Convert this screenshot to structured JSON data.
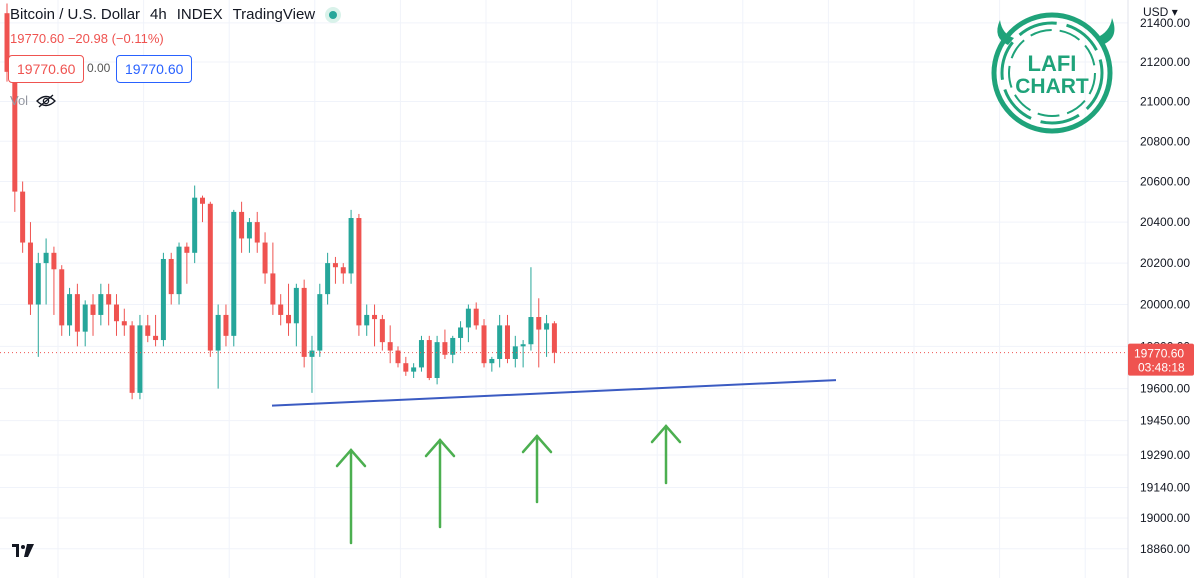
{
  "header": {
    "symbol": "Bitcoin / U.S. Dollar",
    "interval": "4h",
    "exchange": "INDEX",
    "source": "TradingView"
  },
  "ohlc_line": "19770.60 −20.98 (−0.11%)",
  "price_boxes": {
    "sell": "19770.60",
    "spread": "0.00",
    "buy": "19770.60"
  },
  "volume_label": "Vol",
  "currency": "USD",
  "current_price": {
    "price": "19770.60",
    "countdown": "03:48:18"
  },
  "logo": {
    "line1": "LAFI",
    "line2": "CHART"
  },
  "colors": {
    "up": "#26a69a",
    "down": "#ef5350",
    "trendline": "#3b5bc2",
    "arrows": "#4caf50",
    "logo": "#1fa37a"
  },
  "chart_data": {
    "type": "candlestick",
    "title": "Bitcoin / U.S. Dollar 4h",
    "yaxis_scale": "log",
    "ylim": [
      18790,
      21470
    ],
    "y_ticks": [
      "21400.00",
      "21200.00",
      "21000.00",
      "20800.00",
      "20600.00",
      "20400.00",
      "20200.00",
      "20000.00",
      "19800.00",
      "19600.00",
      "19450.00",
      "19290.00",
      "19140.00",
      "19000.00",
      "18860.00"
    ],
    "grid": true,
    "candles": [
      [
        21450,
        21500,
        21100,
        21150
      ],
      [
        21150,
        21200,
        20450,
        20550
      ],
      [
        20550,
        20600,
        20250,
        20300
      ],
      [
        20300,
        20400,
        19950,
        20000
      ],
      [
        20000,
        20250,
        19750,
        20200
      ],
      [
        20200,
        20320,
        20000,
        20250
      ],
      [
        20250,
        20280,
        19950,
        20170
      ],
      [
        20170,
        20190,
        19850,
        19900
      ],
      [
        19900,
        20080,
        19850,
        20050
      ],
      [
        20050,
        20100,
        19800,
        19870
      ],
      [
        19870,
        20020,
        19800,
        20000
      ],
      [
        20000,
        20050,
        19850,
        19950
      ],
      [
        19950,
        20100,
        19900,
        20050
      ],
      [
        20050,
        20100,
        19900,
        20000
      ],
      [
        20000,
        20050,
        19850,
        19920
      ],
      [
        19920,
        19980,
        19850,
        19900
      ],
      [
        19900,
        19920,
        19550,
        19580
      ],
      [
        19580,
        19950,
        19550,
        19900
      ],
      [
        19900,
        19950,
        19820,
        19850
      ],
      [
        19850,
        19950,
        19800,
        19830
      ],
      [
        19830,
        20250,
        19800,
        20220
      ],
      [
        20220,
        20250,
        20000,
        20050
      ],
      [
        20050,
        20300,
        20000,
        20280
      ],
      [
        20280,
        20300,
        20100,
        20250
      ],
      [
        20250,
        20580,
        20200,
        20520
      ],
      [
        20520,
        20530,
        20400,
        20490
      ],
      [
        20490,
        20500,
        19750,
        19780
      ],
      [
        19780,
        20000,
        19600,
        19950
      ],
      [
        19950,
        20000,
        19800,
        19850
      ],
      [
        19850,
        20460,
        19800,
        20450
      ],
      [
        20450,
        20500,
        20250,
        20320
      ],
      [
        20320,
        20420,
        20250,
        20400
      ],
      [
        20400,
        20450,
        20250,
        20300
      ],
      [
        20300,
        20350,
        20100,
        20150
      ],
      [
        20150,
        20300,
        19950,
        20000
      ],
      [
        20000,
        20050,
        19900,
        19950
      ],
      [
        19950,
        20100,
        19850,
        19910
      ],
      [
        19910,
        20100,
        19800,
        20080
      ],
      [
        20080,
        20120,
        19700,
        19750
      ],
      [
        19750,
        19850,
        19580,
        19780
      ],
      [
        19780,
        20100,
        19750,
        20050
      ],
      [
        20050,
        20250,
        20000,
        20200
      ],
      [
        20200,
        20230,
        20100,
        20180
      ],
      [
        20180,
        20200,
        20100,
        20150
      ],
      [
        20150,
        20460,
        20100,
        20420
      ],
      [
        20420,
        20440,
        19850,
        19900
      ],
      [
        19900,
        20000,
        19850,
        19950
      ],
      [
        19950,
        20000,
        19800,
        19930
      ],
      [
        19930,
        19950,
        19780,
        19820
      ],
      [
        19820,
        19900,
        19720,
        19780
      ],
      [
        19780,
        19800,
        19700,
        19720
      ],
      [
        19720,
        19750,
        19660,
        19680
      ],
      [
        19680,
        19720,
        19650,
        19700
      ],
      [
        19700,
        19850,
        19680,
        19830
      ],
      [
        19830,
        19850,
        19640,
        19650
      ],
      [
        19650,
        19850,
        19620,
        19820
      ],
      [
        19820,
        19880,
        19740,
        19760
      ],
      [
        19760,
        19850,
        19720,
        19840
      ],
      [
        19840,
        19920,
        19780,
        19890
      ],
      [
        19890,
        20000,
        19820,
        19980
      ],
      [
        19980,
        20010,
        19880,
        19900
      ],
      [
        19900,
        19930,
        19700,
        19720
      ],
      [
        19720,
        19750,
        19680,
        19740
      ],
      [
        19740,
        19950,
        19700,
        19900
      ],
      [
        19900,
        19950,
        19720,
        19740
      ],
      [
        19740,
        19850,
        19700,
        19800
      ],
      [
        19800,
        19830,
        19700,
        19810
      ],
      [
        19810,
        20180,
        19780,
        19940
      ],
      [
        19940,
        20030,
        19700,
        19880
      ],
      [
        19880,
        19950,
        19750,
        19910
      ],
      [
        19910,
        19920,
        19720,
        19770
      ]
    ],
    "annotations": {
      "trendline": {
        "from": {
          "x": 0,
          "price": 19520
        },
        "to": {
          "x": 1,
          "price": 19640
        }
      },
      "up_arrows": 4
    }
  }
}
